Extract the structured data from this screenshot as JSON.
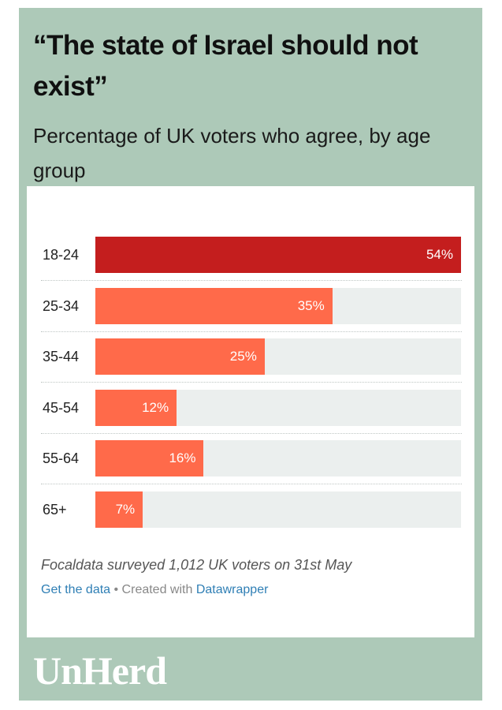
{
  "header": {
    "title": "“The state of Israel should not exist”",
    "subtitle": "Percentage of UK voters who agree, by age group"
  },
  "chart_data": {
    "type": "bar",
    "orientation": "horizontal",
    "categories": [
      "18-24",
      "25-34",
      "35-44",
      "45-54",
      "55-64",
      "65+"
    ],
    "values": [
      54,
      35,
      25,
      12,
      16,
      7
    ],
    "value_labels": [
      "54%",
      "35%",
      "25%",
      "12%",
      "16%",
      "7%"
    ],
    "xlim": [
      0,
      54
    ],
    "highlight_color": "#c41e1e",
    "bar_color": "#ff6a4a",
    "track_color": "#ebefee",
    "grid": false
  },
  "footer": {
    "source": "Focaldata surveyed 1,012 UK voters on 31st May",
    "get_data": "Get the data",
    "separator": " • Created with ",
    "datawrapper": "Datawrapper"
  },
  "brand": {
    "logo": "UnHerd",
    "frame_color": "#adc9b8"
  }
}
